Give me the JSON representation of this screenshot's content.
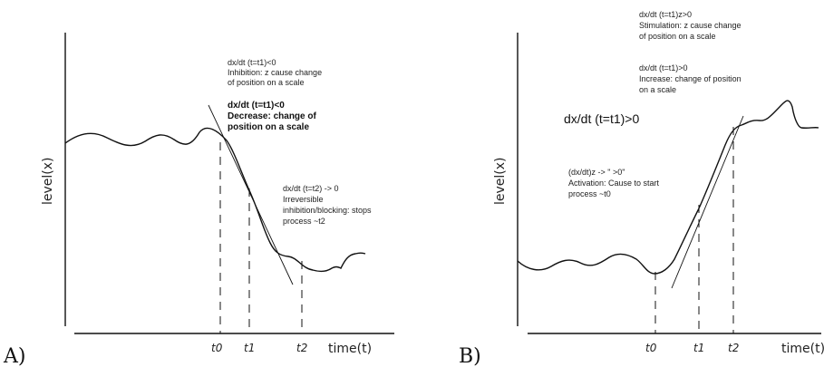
{
  "panel_a": {
    "letter": "A)",
    "ylabel": "level(x)",
    "xlabel": "time(t)",
    "ticks": [
      "t0",
      "t1",
      "t2"
    ],
    "annotation_inhibition": [
      "dx/dt (t=t1)<0",
      "Inhibition: z cause change",
      "of position on a scale"
    ],
    "annotation_decrease": [
      "dx/dt (t=t1)<0",
      "Decrease: change of",
      "position on a scale"
    ],
    "annotation_irreversible": [
      "dx/dt (t=t2) -> 0",
      "Irreversible",
      "inhibition/blocking: stops",
      "process ~t2"
    ]
  },
  "panel_b": {
    "letter": "B)",
    "ylabel": "level(x)",
    "xlabel": "time(t)",
    "ticks": [
      "t0",
      "t1",
      "t2"
    ],
    "annotation_stimulation": [
      "dx/dt (t=t1)z>0",
      "Stimulation: z cause change",
      "of position on a scale"
    ],
    "annotation_increase": [
      "dx/dt (t=t1)>0",
      "Increase: change of position",
      "on a scale"
    ],
    "annotation_main": "dx/dt (t=t1)>0",
    "annotation_activation": [
      "(dx/dt)z -> \" >0\"",
      "Activation: Cause to start",
      "process ~t0"
    ]
  }
}
